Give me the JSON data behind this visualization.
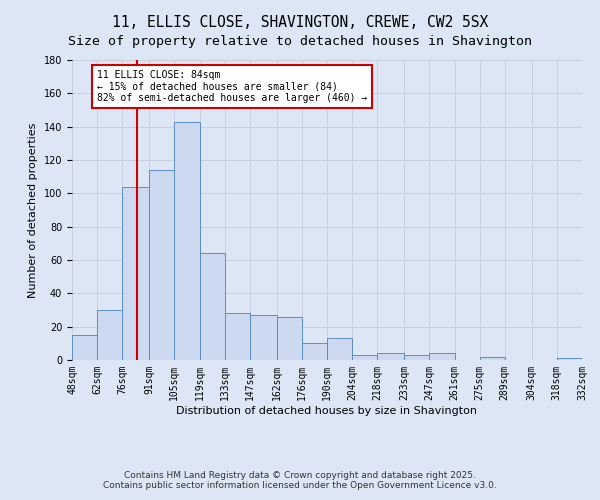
{
  "title_line1": "11, ELLIS CLOSE, SHAVINGTON, CREWE, CW2 5SX",
  "title_line2": "Size of property relative to detached houses in Shavington",
  "xlabel": "Distribution of detached houses by size in Shavington",
  "ylabel": "Number of detached properties",
  "bar_color": "#ccd9f0",
  "bar_edge_color": "#5b8dc8",
  "grid_color": "#c8d0e0",
  "background_color": "#dce6f5",
  "red_line_x": 84,
  "annotation_text": "11 ELLIS CLOSE: 84sqm\n← 15% of detached houses are smaller (84)\n82% of semi-detached houses are larger (460) →",
  "annotation_box_color": "#ffffff",
  "annotation_edge_color": "#cc0000",
  "bin_edges": [
    48,
    62,
    76,
    91,
    105,
    119,
    133,
    147,
    162,
    176,
    190,
    204,
    218,
    233,
    247,
    261,
    275,
    289,
    304,
    318,
    332
  ],
  "bin_counts": [
    15,
    30,
    104,
    114,
    143,
    64,
    28,
    27,
    26,
    10,
    13,
    3,
    4,
    3,
    4,
    0,
    2,
    0,
    0,
    1
  ],
  "tick_labels": [
    "48sqm",
    "62sqm",
    "76sqm",
    "91sqm",
    "105sqm",
    "119sqm",
    "133sqm",
    "147sqm",
    "162sqm",
    "176sqm",
    "190sqm",
    "204sqm",
    "218sqm",
    "233sqm",
    "247sqm",
    "261sqm",
    "275sqm",
    "289sqm",
    "304sqm",
    "318sqm",
    "332sqm"
  ],
  "ylim": [
    0,
    180
  ],
  "yticks": [
    0,
    20,
    40,
    60,
    80,
    100,
    120,
    140,
    160,
    180
  ],
  "footer_line1": "Contains HM Land Registry data © Crown copyright and database right 2025.",
  "footer_line2": "Contains public sector information licensed under the Open Government Licence v3.0.",
  "title_fontsize": 10.5,
  "subtitle_fontsize": 9.5,
  "axis_label_fontsize": 8,
  "tick_fontsize": 7,
  "footer_fontsize": 6.5
}
